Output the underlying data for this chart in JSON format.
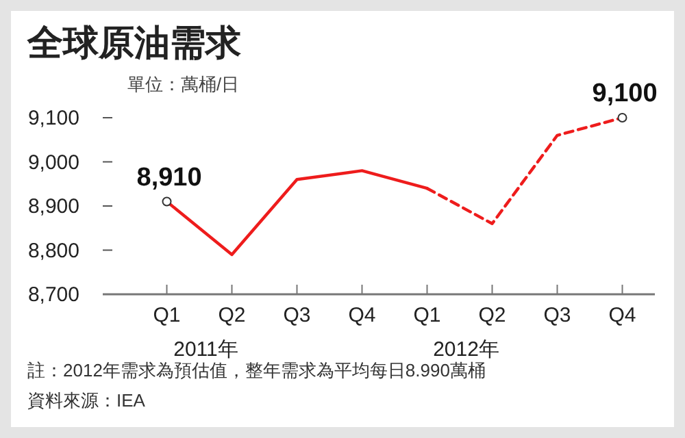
{
  "chart_data": {
    "type": "line",
    "title": "全球原油需求",
    "ylabel": "單位：萬桶/日",
    "categories": [
      "Q1",
      "Q2",
      "Q3",
      "Q4",
      "Q1",
      "Q2",
      "Q3",
      "Q4"
    ],
    "series": [
      {
        "color": "#ee1c1c",
        "line_style": "solid",
        "values": [
          8910,
          8790,
          8960,
          8980,
          8940,
          null,
          null,
          null
        ],
        "value_labels": [
          "8,910",
          null,
          null,
          null,
          null,
          null,
          null,
          null
        ]
      },
      {
        "color": "#ee1c1c",
        "line_style": "dashed",
        "values": [
          null,
          null,
          null,
          null,
          8940,
          8860,
          9060,
          9100
        ],
        "value_labels": [
          null,
          null,
          null,
          null,
          null,
          null,
          null,
          "9,100"
        ]
      }
    ],
    "ylim": [
      8700,
      9100
    ],
    "yticks": [
      {
        "value": 8700,
        "label": "8,700"
      },
      {
        "value": 8800,
        "label": "8,800"
      },
      {
        "value": 8900,
        "label": "8,900"
      },
      {
        "value": 9000,
        "label": "9,000"
      },
      {
        "value": 9100,
        "label": "9,100"
      }
    ],
    "grid": false,
    "annotations": [
      "2011年",
      "2012年",
      "註：2012年需求為預估值，整年需求為平均每日8.990萬桶",
      "資料來源：IEA"
    ]
  }
}
